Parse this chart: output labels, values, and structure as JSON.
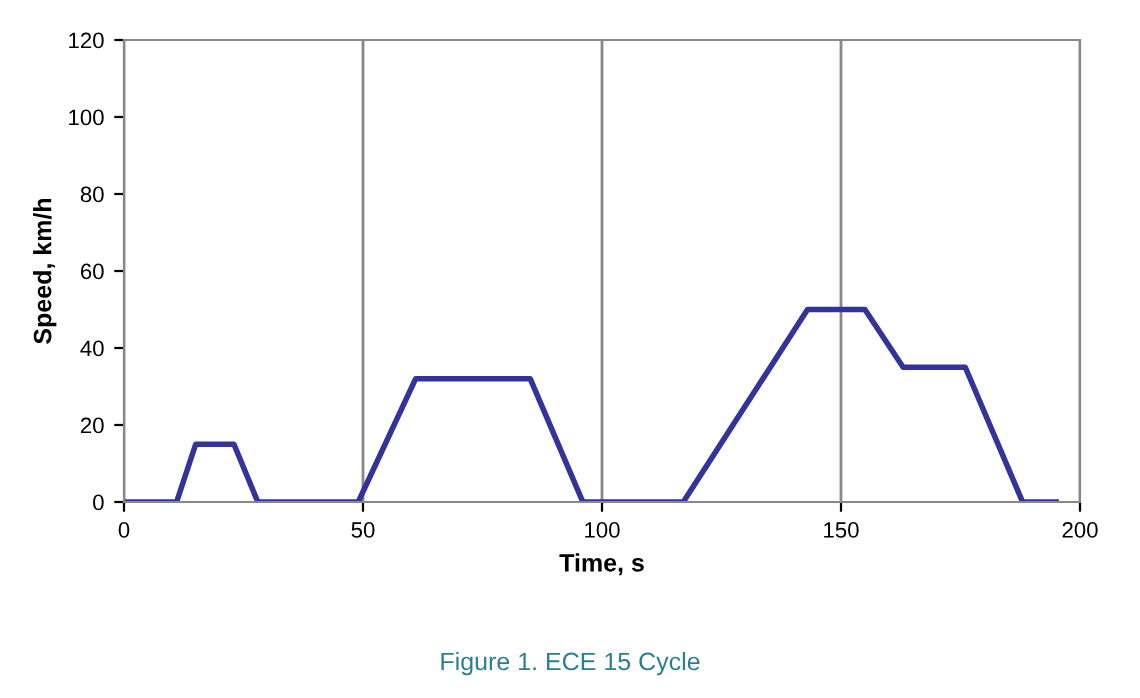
{
  "chart_data": {
    "type": "line",
    "xlabel": "Time, s",
    "ylabel": "Speed, km/h",
    "x": [
      0,
      11,
      15,
      23,
      28,
      49,
      61,
      85,
      96,
      117,
      143,
      155,
      163,
      176,
      188,
      195
    ],
    "series": [
      {
        "color": "#333399",
        "values": [
          0,
          0,
          15,
          15,
          0,
          0,
          32,
          32,
          0,
          0,
          50,
          50,
          35,
          35,
          0,
          0
        ]
      }
    ],
    "xlim": [
      0,
      200
    ],
    "xticks": [
      0,
      50,
      100,
      150,
      200
    ],
    "ylim": [
      0,
      120
    ],
    "yticks": [
      0,
      20,
      40,
      60,
      80,
      100,
      120
    ],
    "grid": "x",
    "marker": "none",
    "line_style": "solid",
    "annotations": [
      "Figure 1. ECE 15 Cycle"
    ]
  }
}
